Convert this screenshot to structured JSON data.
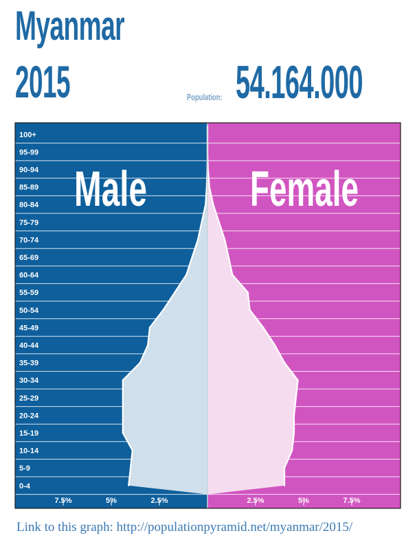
{
  "header": {
    "country": "Myanmar",
    "year": "2015",
    "population_label": "Population:",
    "population_value": "54.164.000"
  },
  "footer": {
    "link_text": "Link to this graph: http://populationpyramid.net/myanmar/2015/"
  },
  "colors": {
    "male_bg": "#0e5f9c",
    "female_bg": "#d155c1",
    "male_fill": "#cfe0ec",
    "female_fill": "#f6dcef",
    "title": "#1f6aa5"
  },
  "chart_data": {
    "type": "area",
    "title": "",
    "panel_labels": {
      "left": "Male",
      "right": "Female"
    },
    "unit": "% of population",
    "xlim": [
      -10,
      10
    ],
    "x_tick_labels": {
      "left": [
        {
          "value": -7.5,
          "label": "7.5%"
        },
        {
          "value": -5,
          "label": "5%"
        },
        {
          "value": -2.5,
          "label": "2.5%"
        }
      ],
      "right": [
        {
          "value": 2.5,
          "label": "2.5%"
        },
        {
          "value": 5,
          "label": "5%"
        },
        {
          "value": 7.5,
          "label": "7.5%"
        }
      ]
    },
    "age_groups": [
      "0-4",
      "5-9",
      "10-14",
      "15-19",
      "20-24",
      "25-29",
      "30-34",
      "35-39",
      "40-44",
      "45-49",
      "50-54",
      "55-59",
      "60-64",
      "65-69",
      "70-74",
      "75-79",
      "80-84",
      "85-89",
      "90-94",
      "95-99",
      "100+"
    ],
    "series": [
      {
        "name": "Male",
        "values": [
          4.1,
          4.0,
          3.9,
          4.4,
          4.4,
          4.4,
          4.4,
          3.5,
          3.1,
          3.0,
          2.3,
          1.7,
          1.1,
          0.8,
          0.5,
          0.3,
          0.1,
          0.04,
          0.01,
          0.0,
          0.0
        ]
      },
      {
        "name": "Female",
        "values": [
          4.0,
          4.0,
          4.4,
          4.5,
          4.5,
          4.6,
          4.7,
          4.0,
          3.5,
          2.9,
          2.2,
          2.1,
          1.3,
          1.1,
          0.9,
          0.6,
          0.3,
          0.1,
          0.03,
          0.0,
          0.0
        ]
      }
    ]
  }
}
